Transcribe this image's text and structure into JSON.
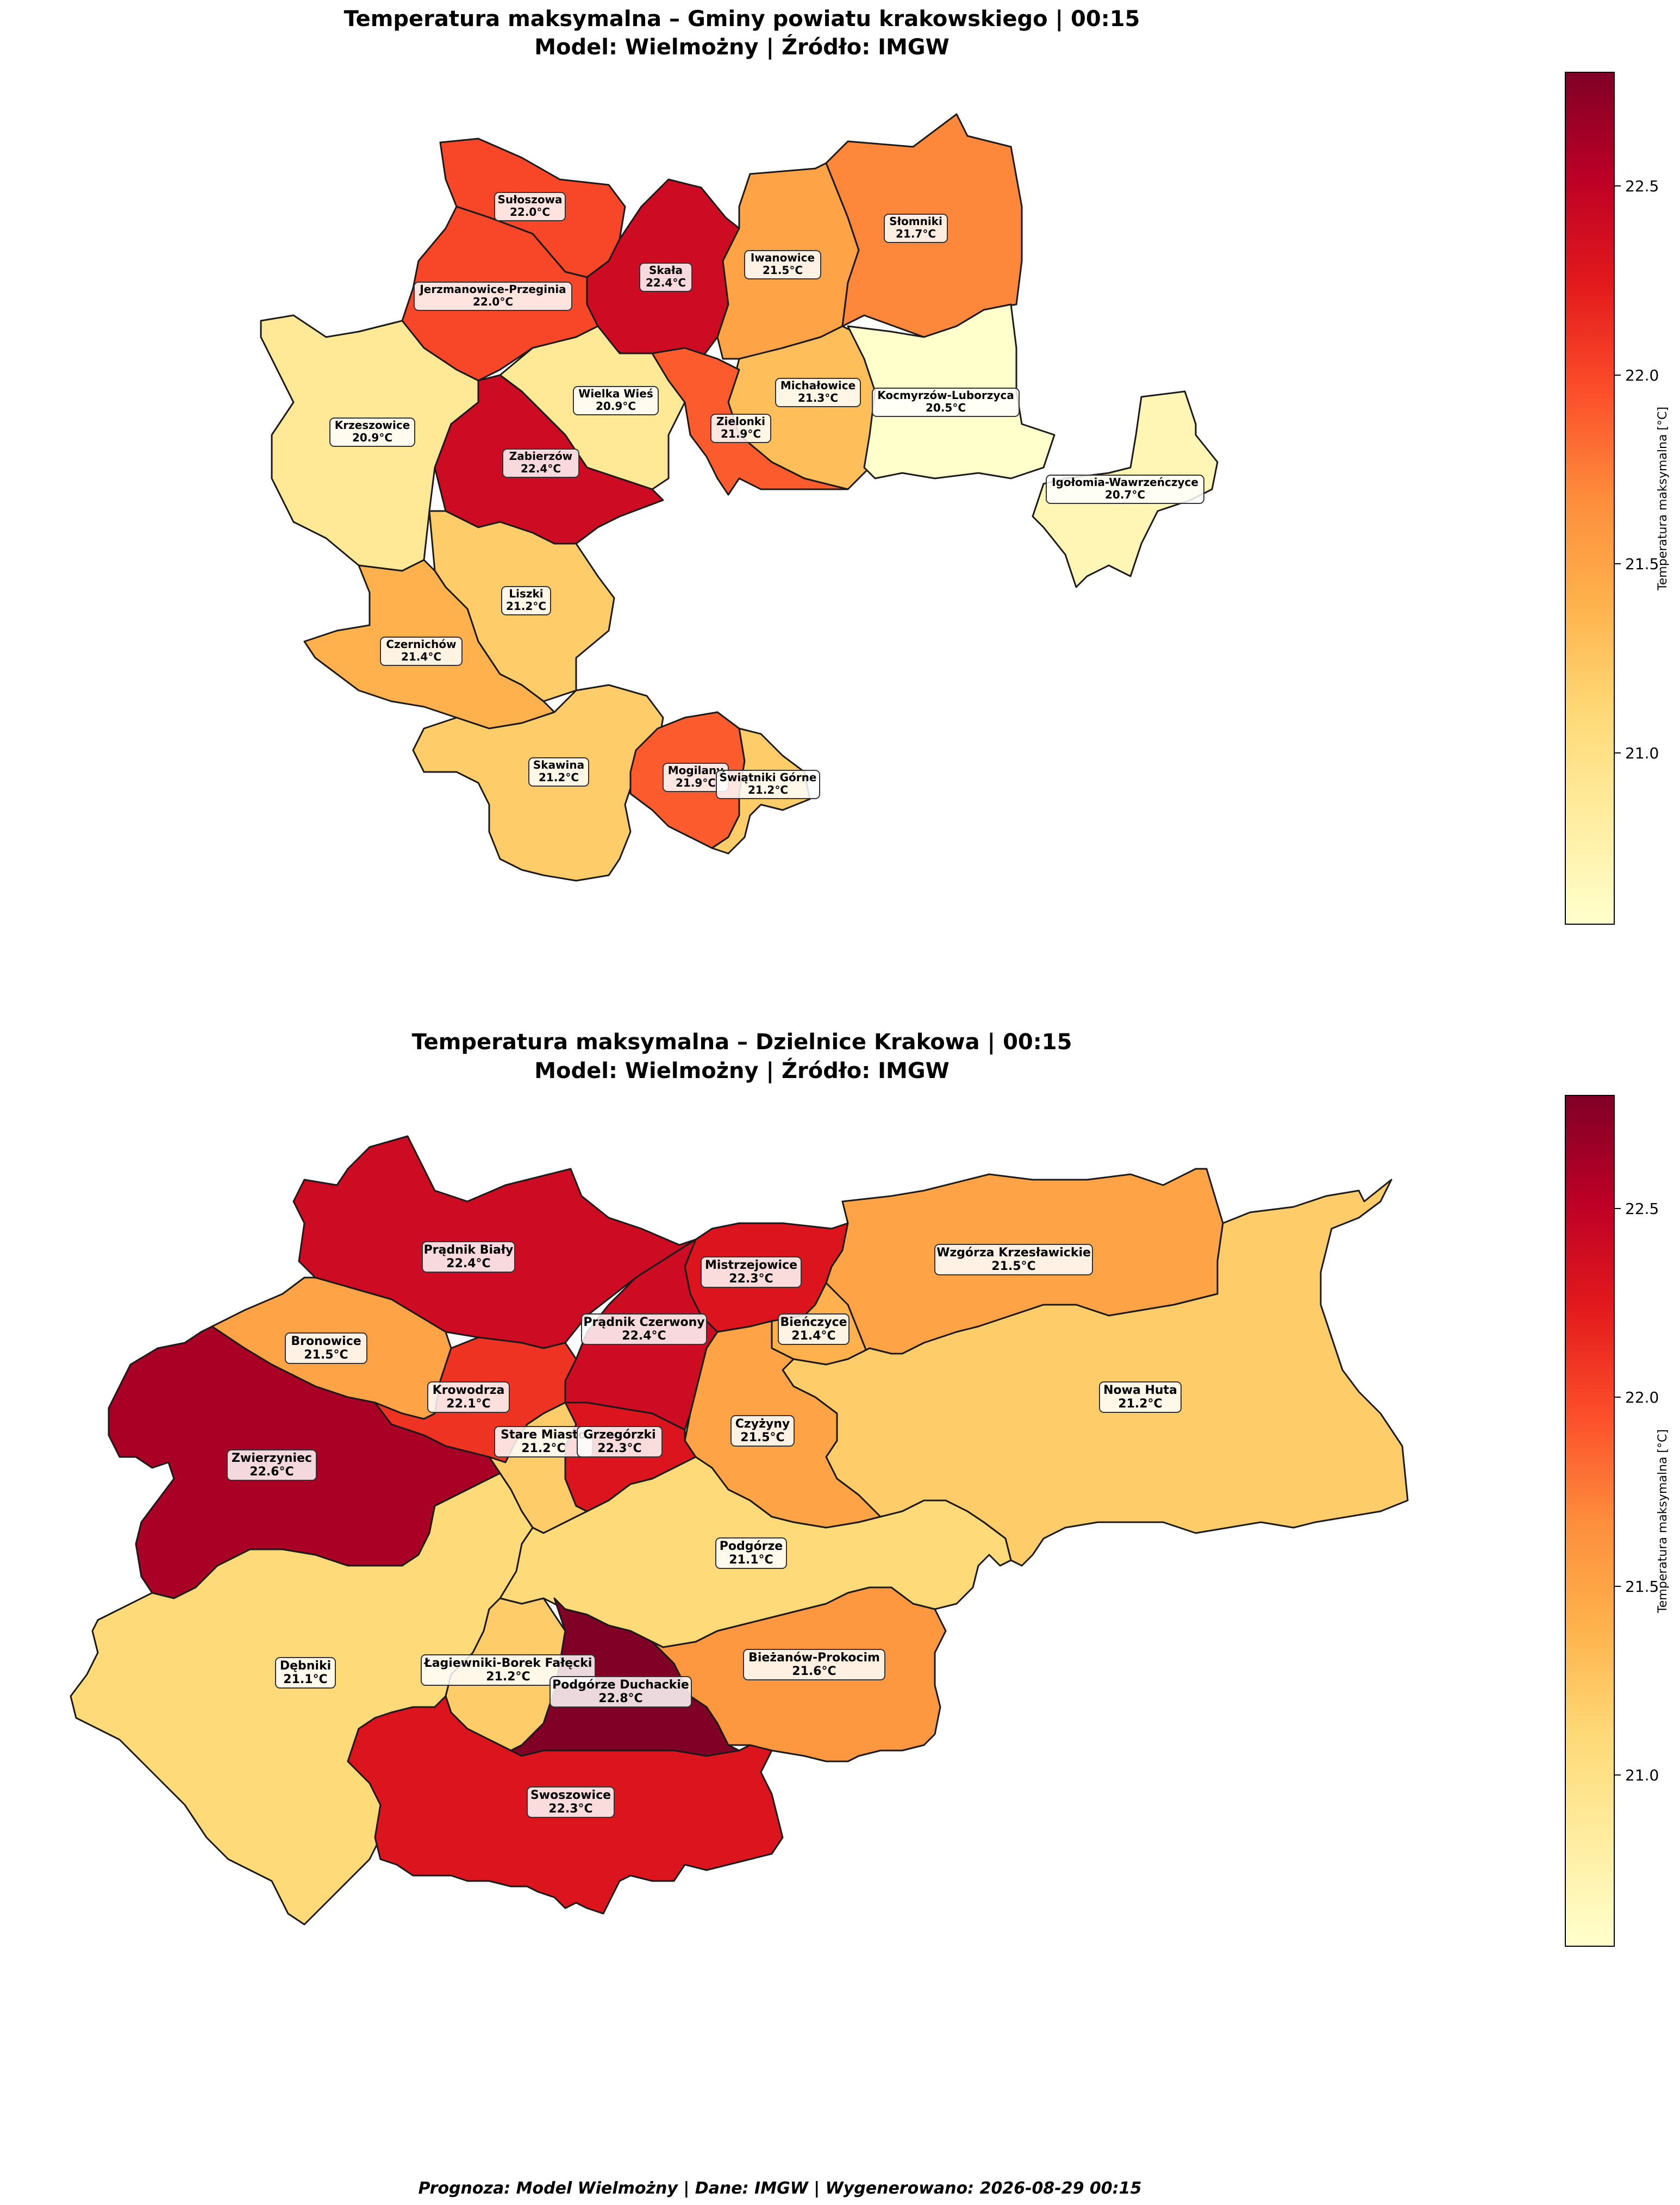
{
  "figure": {
    "footer": "Prognoza: Model Wielmożny | Dane: IMGW | Wygenerowano: 2026-08-29 00:15"
  },
  "chart_data": [
    {
      "type": "choropleth",
      "title_line1": "Temperatura maksymalna – Gminy powiatu krakowskiego | 00:15",
      "title_line2": "Model: Wielmożny | Źródło: IMGW",
      "colorbar": {
        "label": "Temperatura maksymalna [°C]",
        "range": [
          20.55,
          22.8
        ],
        "ticks": [
          "21.0",
          "21.5",
          "22.0",
          "22.5"
        ],
        "colormap": "YlOrRd"
      },
      "regions": [
        {
          "name": "Sułoszowa",
          "value": 22.0,
          "temp": "22.0°C"
        },
        {
          "name": "Skała",
          "value": 22.4,
          "temp": "22.4°C"
        },
        {
          "name": "Iwanowice",
          "value": 21.5,
          "temp": "21.5°C"
        },
        {
          "name": "Słomniki",
          "value": 21.7,
          "temp": "21.7°C"
        },
        {
          "name": "Jerzmanowice-Przeginia",
          "value": 22.0,
          "temp": "22.0°C"
        },
        {
          "name": "Krzeszowice",
          "value": 20.9,
          "temp": "20.9°C"
        },
        {
          "name": "Wielka Wieś",
          "value": 20.9,
          "temp": "20.9°C"
        },
        {
          "name": "Michałowice",
          "value": 21.3,
          "temp": "21.3°C"
        },
        {
          "name": "Kocmyrzów-Luborzyca",
          "value": 20.5,
          "temp": "20.5°C"
        },
        {
          "name": "Zielonki",
          "value": 21.9,
          "temp": "21.9°C"
        },
        {
          "name": "Zabierzów",
          "value": 22.4,
          "temp": "22.4°C"
        },
        {
          "name": "Igołomia-Wawrzeńczyce",
          "value": 20.7,
          "temp": "20.7°C"
        },
        {
          "name": "Liszki",
          "value": 21.2,
          "temp": "21.2°C"
        },
        {
          "name": "Czernichów",
          "value": 21.4,
          "temp": "21.4°C"
        },
        {
          "name": "Skawina",
          "value": 21.2,
          "temp": "21.2°C"
        },
        {
          "name": "Mogilany",
          "value": 21.9,
          "temp": "21.9°C"
        },
        {
          "name": "Świątniki Górne",
          "value": 21.2,
          "temp": "21.2°C"
        }
      ]
    },
    {
      "type": "choropleth",
      "title_line1": "Temperatura maksymalna – Dzielnice Krakowa | 00:15",
      "title_line2": "Model: Wielmożny | Źródło: IMGW",
      "colorbar": {
        "label": "Temperatura maksymalna [°C]",
        "range": [
          20.55,
          22.8
        ],
        "ticks": [
          "21.0",
          "21.5",
          "22.0",
          "22.5"
        ],
        "colormap": "YlOrRd"
      },
      "regions": [
        {
          "name": "Prądnik Biały",
          "value": 22.4,
          "temp": "22.4°C"
        },
        {
          "name": "Mistrzejowice",
          "value": 22.3,
          "temp": "22.3°C"
        },
        {
          "name": "Wzgórza Krzesławickie",
          "value": 21.5,
          "temp": "21.5°C"
        },
        {
          "name": "Bronowice",
          "value": 21.5,
          "temp": "21.5°C"
        },
        {
          "name": "Prądnik Czerwony",
          "value": 22.4,
          "temp": "22.4°C"
        },
        {
          "name": "Bieńczyce",
          "value": 21.4,
          "temp": "21.4°C"
        },
        {
          "name": "Krowodrza",
          "value": 22.1,
          "temp": "22.1°C"
        },
        {
          "name": "Nowa Huta",
          "value": 21.2,
          "temp": "21.2°C"
        },
        {
          "name": "Czyżyny",
          "value": 21.5,
          "temp": "21.5°C"
        },
        {
          "name": "Stare Miasto",
          "value": 21.2,
          "temp": "21.2°C"
        },
        {
          "name": "Grzegórzki",
          "value": 22.3,
          "temp": "22.3°C"
        },
        {
          "name": "Zwierzyniec",
          "value": 22.6,
          "temp": "22.6°C"
        },
        {
          "name": "Podgórze",
          "value": 21.1,
          "temp": "21.1°C"
        },
        {
          "name": "Dębniki",
          "value": 21.1,
          "temp": "21.1°C"
        },
        {
          "name": "Łagiewniki-Borek Fałęcki",
          "value": 21.2,
          "temp": "21.2°C"
        },
        {
          "name": "Bieżanów-Prokocim",
          "value": 21.6,
          "temp": "21.6°C"
        },
        {
          "name": "Podgórze Duchackie",
          "value": 22.8,
          "temp": "22.8°C"
        },
        {
          "name": "Swoszowice",
          "value": 22.3,
          "temp": "22.3°C"
        }
      ]
    }
  ]
}
